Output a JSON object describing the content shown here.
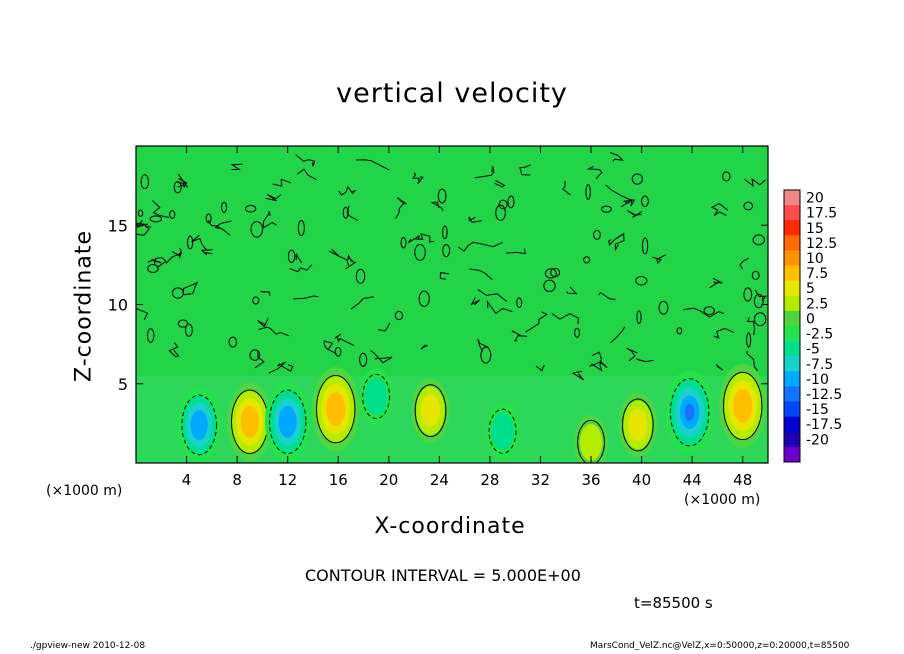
{
  "chart_data": {
    "type": "heatmap",
    "title": "vertical velocity",
    "xlabel": "X-coordinate",
    "ylabel": "Z-coordinate",
    "x_unit_note": "(×1000 m)",
    "xlim": [
      0,
      50
    ],
    "ylim": [
      0,
      20
    ],
    "x_ticks": [
      "4",
      "8",
      "12",
      "16",
      "20",
      "24",
      "28",
      "32",
      "36",
      "40",
      "44",
      "48"
    ],
    "y_ticks": [
      "5",
      "10",
      "15"
    ],
    "colorbar": {
      "levels": [
        "20",
        "17.5",
        "15",
        "12.5",
        "10",
        "7.5",
        "5",
        "2.5",
        "0",
        "-2.5",
        "-5",
        "-7.5",
        "-10",
        "-12.5",
        "-15",
        "-17.5",
        "-20"
      ],
      "colors": [
        "#f38787",
        "#ff4c4c",
        "#ff2a00",
        "#ff6a00",
        "#ff9400",
        "#ffbf00",
        "#e6e600",
        "#b4ec00",
        "#4ed640",
        "#23e34a",
        "#00e08c",
        "#19d2ce",
        "#00a8ff",
        "#1473ff",
        "#0047ff",
        "#0000d2",
        "#1c00b4",
        "#6a00c8"
      ]
    },
    "contour_interval_text": "CONTOUR INTERVAL = 5.000E+00",
    "cells": [
      {
        "x": 5,
        "z": 2.4,
        "w": -8
      },
      {
        "x": 9,
        "z": 2.6,
        "w": 9
      },
      {
        "x": 12,
        "z": 2.6,
        "w": -9
      },
      {
        "x": 15.8,
        "z": 3.4,
        "w": 10
      },
      {
        "x": 19,
        "z": 4.2,
        "w": -4
      },
      {
        "x": 23.3,
        "z": 3.3,
        "w": 6
      },
      {
        "x": 29,
        "z": 2.0,
        "w": -4
      },
      {
        "x": 36,
        "z": 1.3,
        "w": 4
      },
      {
        "x": 39.7,
        "z": 2.4,
        "w": 6
      },
      {
        "x": 43.8,
        "z": 3.2,
        "w": -10
      },
      {
        "x": 48,
        "z": 3.6,
        "w": 10
      }
    ]
  },
  "time_text": "t=85500 s",
  "footer": {
    "left": "./gpview-new  2010-12-08",
    "right": "MarsCond_VelZ.nc@VelZ,x=0:50000,z=0:20000,t=85500"
  }
}
